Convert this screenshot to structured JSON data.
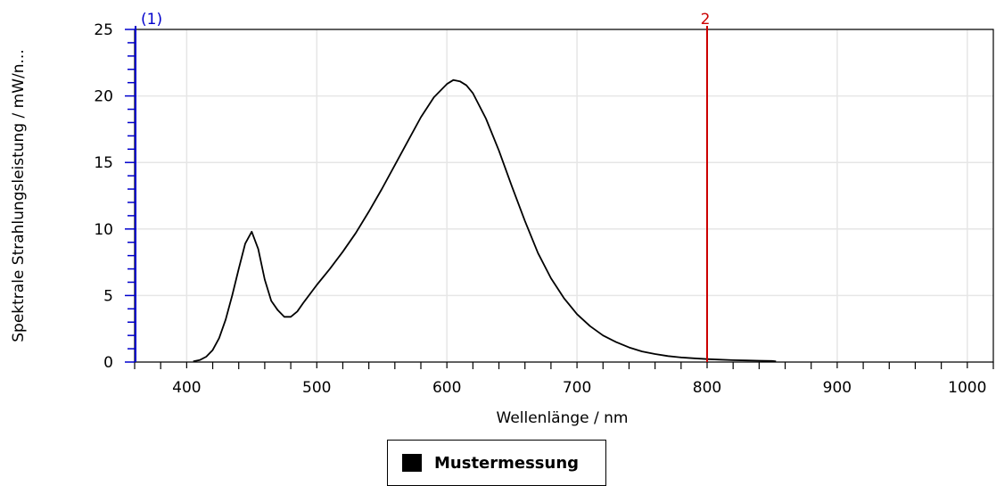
{
  "chart_data": {
    "type": "line",
    "xlabel": "Wellenlänge / nm",
    "ylabel": "Spektrale Strahlungsleistung / mW/n...",
    "xlim": [
      360,
      1020
    ],
    "ylim": [
      0,
      25
    ],
    "x_ticks": [
      400,
      500,
      600,
      700,
      800,
      900,
      1000
    ],
    "y_ticks": [
      0,
      5,
      10,
      15,
      20,
      25
    ],
    "grid": true,
    "markers": [
      {
        "label": "(1)",
        "x": 360,
        "color": "#0000cc"
      },
      {
        "label": "2",
        "x": 800,
        "color": "#cc0000"
      }
    ],
    "series": [
      {
        "name": "Mustermessung",
        "color": "#000000",
        "x": [
          405,
          410,
          415,
          420,
          425,
          430,
          435,
          440,
          445,
          450,
          455,
          460,
          465,
          470,
          475,
          480,
          485,
          490,
          500,
          510,
          520,
          530,
          540,
          550,
          560,
          570,
          580,
          590,
          600,
          605,
          610,
          615,
          620,
          630,
          640,
          650,
          660,
          670,
          680,
          690,
          700,
          710,
          720,
          730,
          740,
          750,
          760,
          770,
          780,
          790,
          800,
          810,
          820,
          830,
          840,
          850,
          853
        ],
        "y": [
          0.05,
          0.15,
          0.4,
          0.9,
          1.8,
          3.2,
          5.0,
          7.0,
          8.9,
          9.8,
          8.5,
          6.2,
          4.6,
          3.9,
          3.4,
          3.4,
          3.8,
          4.5,
          5.8,
          7.0,
          8.3,
          9.7,
          11.3,
          13.0,
          14.8,
          16.6,
          18.4,
          19.9,
          20.9,
          21.2,
          21.1,
          20.8,
          20.2,
          18.3,
          15.9,
          13.2,
          10.6,
          8.2,
          6.3,
          4.8,
          3.6,
          2.7,
          2.0,
          1.5,
          1.1,
          0.8,
          0.6,
          0.45,
          0.35,
          0.28,
          0.22,
          0.18,
          0.14,
          0.12,
          0.1,
          0.08,
          0.05
        ]
      }
    ]
  }
}
